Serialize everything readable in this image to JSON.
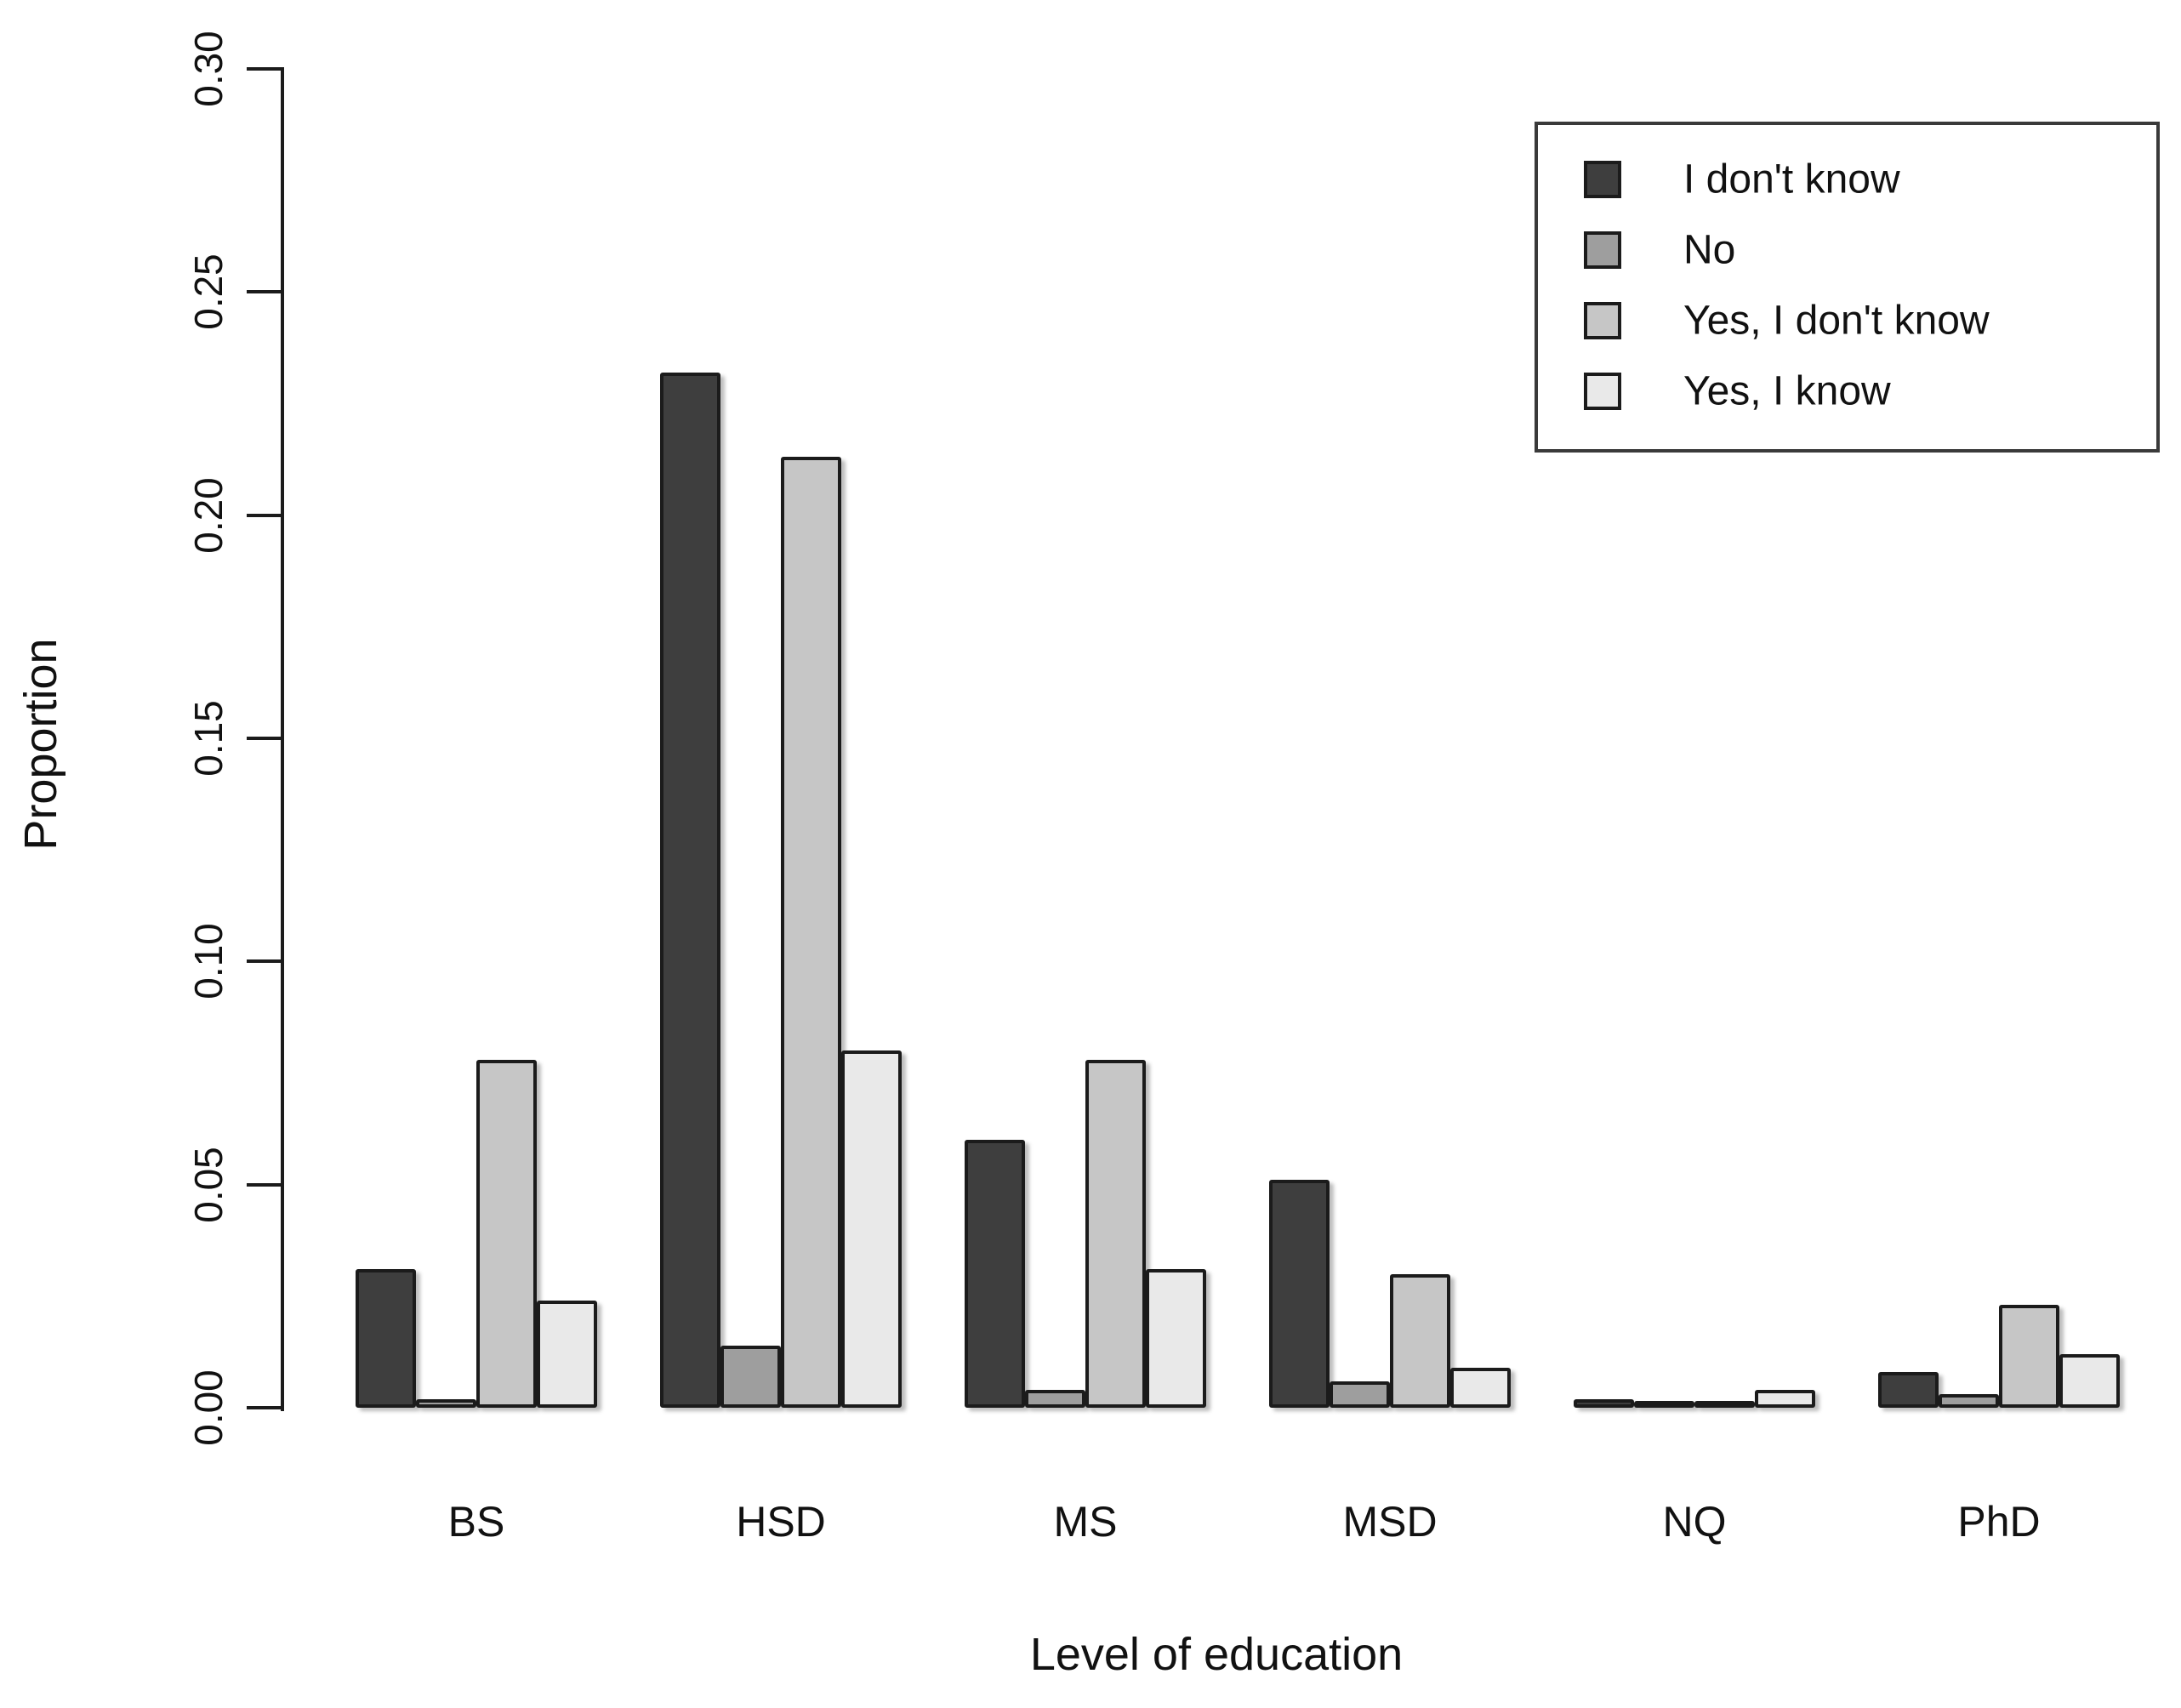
{
  "chart_data": {
    "type": "bar",
    "title": "",
    "xlabel": "Level of education",
    "ylabel": "Proportion",
    "categories": [
      "BS",
      "HSD",
      "MS",
      "MSD",
      "NQ",
      "PhD"
    ],
    "series": [
      {
        "name": "I don't know",
        "color": "#3E3E3E",
        "values": [
          0.031,
          0.232,
          0.06,
          0.051,
          0.002,
          0.008
        ]
      },
      {
        "name": "No",
        "color": "#9E9E9E",
        "values": [
          0.002,
          0.014,
          0.004,
          0.006,
          0.0,
          0.003
        ]
      },
      {
        "name": "Yes, I don't know",
        "color": "#C6C6C6",
        "values": [
          0.078,
          0.213,
          0.078,
          0.03,
          0.0,
          0.023
        ]
      },
      {
        "name": "Yes, I know",
        "color": "#E9E9E9",
        "values": [
          0.024,
          0.08,
          0.031,
          0.009,
          0.004,
          0.012
        ]
      }
    ],
    "ylim": [
      0,
      0.3
    ],
    "ytick_labels": [
      "0.00",
      "0.05",
      "0.10",
      "0.15",
      "0.20",
      "0.25",
      "0.30"
    ],
    "ytick_values": [
      0.0,
      0.05,
      0.1,
      0.15,
      0.2,
      0.25,
      0.3
    ],
    "grid": false,
    "legend_position": "top-right",
    "bar_border_color": "#1b1b1b",
    "background": "#ffffff"
  }
}
